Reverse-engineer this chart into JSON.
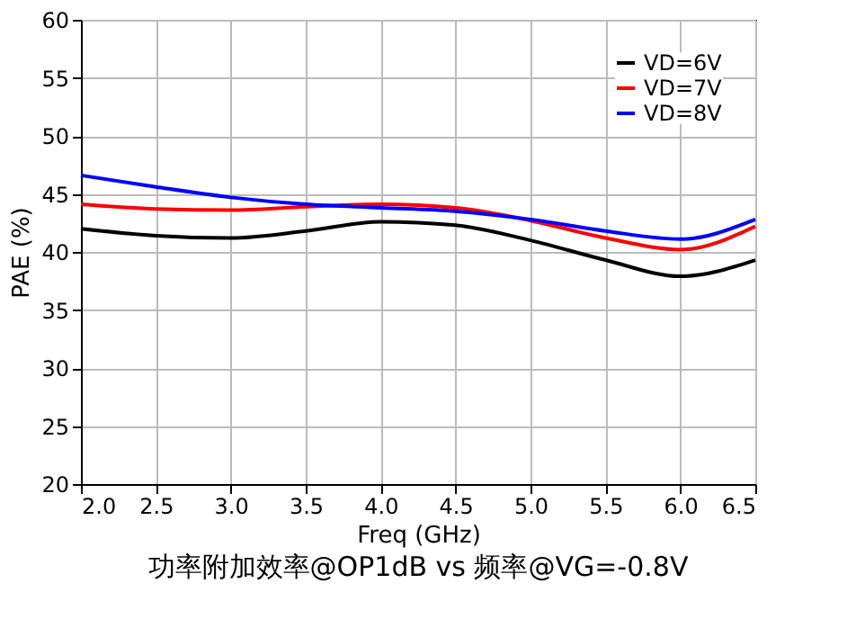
{
  "chart_data": {
    "type": "line",
    "xlabel": "Freq (GHz)",
    "ylabel": "PAE (%)",
    "annotations": [
      "功率附加效率@OP1dB vs 频率@VG=-0.8V"
    ],
    "x": [
      2.0,
      2.5,
      3.0,
      3.5,
      4.0,
      4.5,
      5.0,
      5.5,
      6.0,
      6.5
    ],
    "series": [
      {
        "name": "VD=6V",
        "color": "#000000",
        "values": [
          42.0,
          41.4,
          41.2,
          41.8,
          42.6,
          42.3,
          41.0,
          39.3,
          37.9,
          39.3
        ]
      },
      {
        "name": "VD=7V",
        "color": "#ff0000",
        "values": [
          44.1,
          43.7,
          43.6,
          43.9,
          44.1,
          43.8,
          42.7,
          41.2,
          40.2,
          42.2
        ]
      },
      {
        "name": "VD=8V",
        "color": "#0000ff",
        "values": [
          46.6,
          45.6,
          44.7,
          44.1,
          43.8,
          43.5,
          42.8,
          41.8,
          41.1,
          42.8
        ]
      }
    ],
    "xlim": [
      2.0,
      6.5
    ],
    "xticks": [
      {
        "value": 2,
        "label": "2.0"
      },
      2.5,
      {
        "value": 3,
        "label": "3.0"
      },
      3.5,
      {
        "value": 4,
        "label": "4.0"
      },
      4.5,
      {
        "value": 5,
        "label": "5.0"
      },
      5.5,
      {
        "value": 6,
        "label": "6.0"
      },
      6.5
    ],
    "ylim": [
      20,
      60
    ],
    "yticks": [
      20,
      25,
      30,
      35,
      40,
      45,
      50,
      55,
      60
    ],
    "grid": true,
    "legend": "top right",
    "marker": "none",
    "line_style": "solid"
  }
}
